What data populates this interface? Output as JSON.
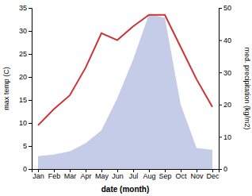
{
  "chart_data": {
    "type": "line",
    "xlabel": "date (month)",
    "ylabel": "max temp (C)",
    "y2label": "med. precipitation (kg/m2)",
    "categories": [
      "Jan",
      "Feb",
      "Mar",
      "Apr",
      "May",
      "Jun",
      "Jul",
      "Aug",
      "Sep",
      "Oct",
      "Nov",
      "Dec"
    ],
    "series": [
      {
        "type": "area",
        "axis": "y2",
        "color": "#c5cce8",
        "values": [
          4.0,
          4.5,
          5.5,
          8.0,
          12.0,
          22.0,
          34.0,
          48.0,
          47.0,
          20.0,
          6.5,
          6.0
        ]
      },
      {
        "type": "line",
        "color": "#cc3333",
        "values": [
          9.5,
          13.0,
          16.0,
          22.0,
          29.5,
          28.0,
          31.0,
          33.5,
          33.5,
          26.5,
          19.5,
          13.5
        ]
      }
    ],
    "ylim": [
      0,
      35
    ],
    "yticks": [
      0,
      5,
      10,
      15,
      20,
      25,
      30,
      35
    ],
    "y2lim": [
      0,
      50
    ],
    "y2ticks": [
      0,
      10,
      20,
      30,
      40,
      50
    ],
    "grid": false
  }
}
